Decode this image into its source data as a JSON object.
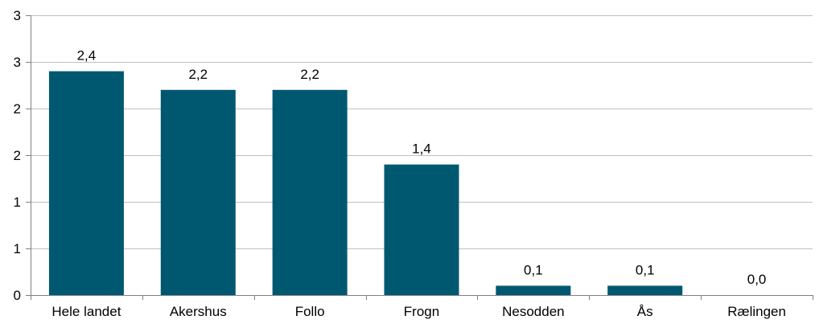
{
  "chart_data": {
    "type": "bar",
    "categories": [
      "Hele landet",
      "Akershus",
      "Follo",
      "Frogn",
      "Nesodden",
      "Ås",
      "Rælingen"
    ],
    "values": [
      2.4,
      2.2,
      2.2,
      1.4,
      0.1,
      0.1,
      0.0
    ],
    "data_labels": [
      "2,4",
      "2,2",
      "2,2",
      "1,4",
      "0,1",
      "0,1",
      "0,0"
    ],
    "y_ticks": [
      0,
      0.5,
      1,
      1.5,
      2,
      2.5,
      3
    ],
    "y_tick_labels": [
      "0",
      "1",
      "1",
      "2",
      "2",
      "3",
      "3"
    ],
    "ylim": [
      0,
      3
    ],
    "grid": true,
    "legend": "none",
    "bar_color": "#005870",
    "grid_color": "#c0c0c0"
  }
}
